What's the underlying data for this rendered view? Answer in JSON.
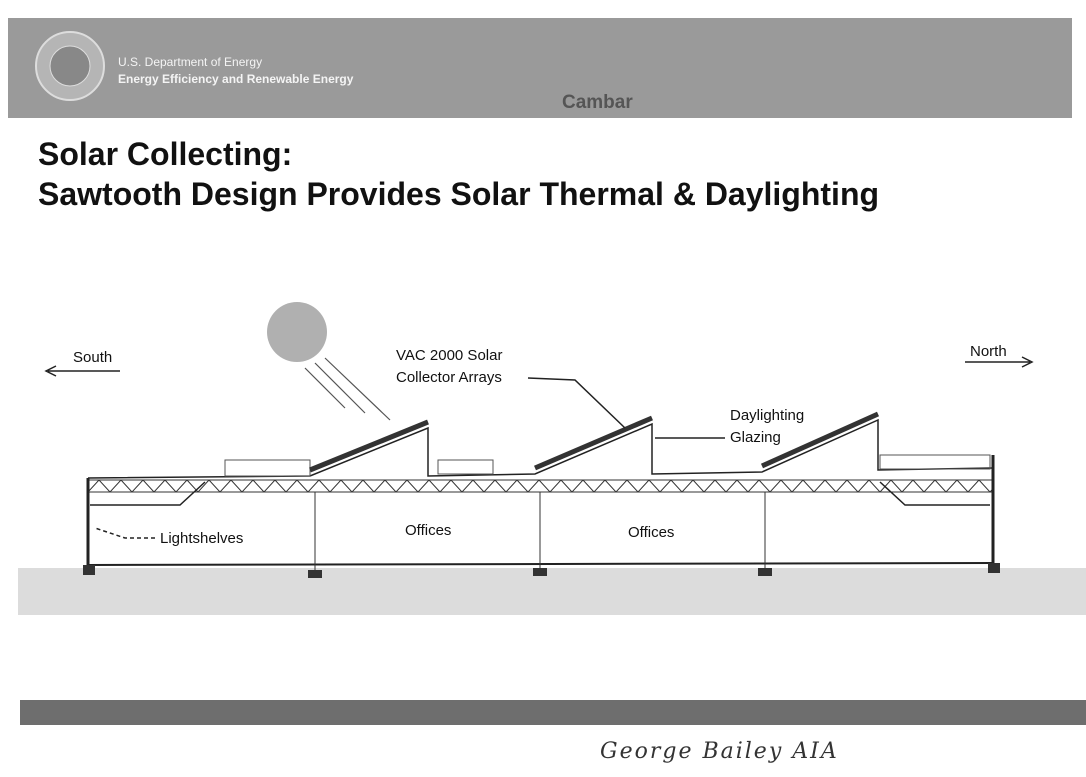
{
  "header": {
    "org_lines": [
      "U.S. Department of Energy",
      "Energy Efficiency and Renewable Energy"
    ],
    "partner": "Cambar"
  },
  "title_lines": [
    "Solar Collecting:",
    "Sawtooth Design Provides Solar Thermal & Daylighting"
  ],
  "diagram": {
    "directions": {
      "south": "South",
      "north": "North"
    },
    "labels": {
      "collectors": [
        "VAC 2000 Solar",
        "Collector Arrays"
      ],
      "glazing": [
        "Daylighting",
        "Glazing"
      ],
      "lightshelves": "Lightshelves",
      "offices": [
        "Offices",
        "Offices"
      ]
    }
  },
  "signature": "George Bailey AIA"
}
